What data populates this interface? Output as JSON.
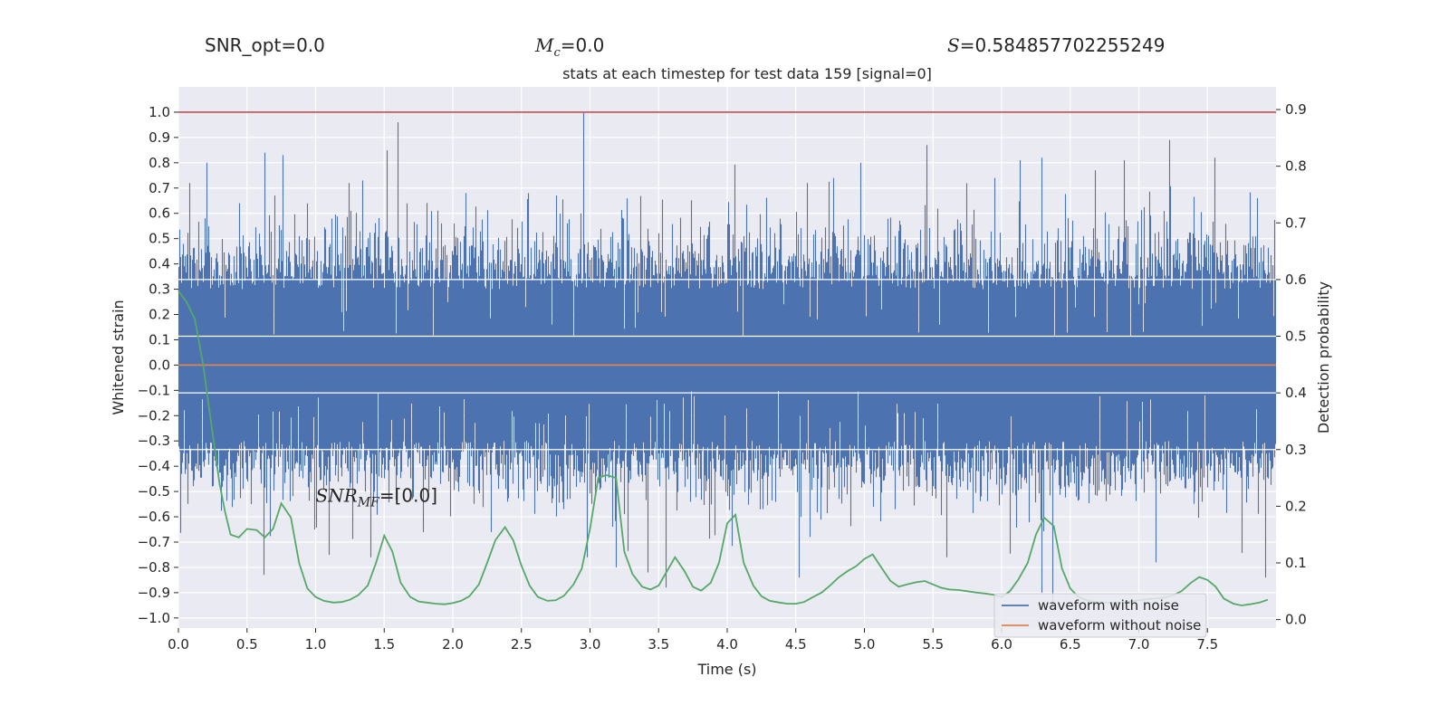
{
  "header": {
    "snr_opt_label": "SNR_opt=0.0",
    "mc_symbol": "M",
    "mc_sub": "c",
    "mc_value": "=0.0",
    "s_symbol": "S",
    "s_value": "=0.584857702255249"
  },
  "chart_data": {
    "type": "line",
    "title": "stats at each timestep for test data 159 [signal=0]",
    "xlabel": "Time (s)",
    "ylabel_left": "Whitened strain",
    "ylabel_right": "Detection probability",
    "xlim": [
      0.0,
      8.0
    ],
    "ylim_left": [
      -1.04,
      1.1
    ],
    "ylim_right": [
      -0.015,
      0.94
    ],
    "xticks": [
      "0.0",
      "0.5",
      "1.0",
      "1.5",
      "2.0",
      "2.5",
      "3.0",
      "3.5",
      "4.0",
      "4.5",
      "5.0",
      "5.5",
      "6.0",
      "6.5",
      "7.0",
      "7.5"
    ],
    "yticks_left": [
      "1.0",
      "0.9",
      "0.8",
      "0.7",
      "0.6",
      "0.5",
      "0.4",
      "0.3",
      "0.2",
      "0.1",
      "0.0",
      "−0.1",
      "−0.2",
      "−0.3",
      "−0.4",
      "−0.5",
      "−0.6",
      "−0.7",
      "−0.8",
      "−0.9",
      "−1.0"
    ],
    "yticks_right": [
      "0.9",
      "0.8",
      "0.7",
      "0.6",
      "0.5",
      "0.4",
      "0.3",
      "0.2",
      "0.1",
      "0.0"
    ],
    "grid": true,
    "legend_position": "bottom-right",
    "annotation": {
      "symbol": "SNR",
      "sub": "MF",
      "value": "=[0.0]",
      "x": 1.0,
      "y": -0.52
    },
    "hlines": [
      {
        "y": 1.0,
        "color": "#c44e52"
      }
    ],
    "noise_series": {
      "name": "waveform with noise",
      "color": "#4c72b0",
      "peaks": [
        {
          "t": 0.08,
          "v": 0.72
        },
        {
          "t": 0.19,
          "v": 0.58
        },
        {
          "t": 0.44,
          "v": 0.64
        },
        {
          "t": 0.63,
          "v": 0.84
        },
        {
          "t": 0.76,
          "v": 0.83
        },
        {
          "t": 1.24,
          "v": 0.72
        },
        {
          "t": 1.34,
          "v": 0.73
        },
        {
          "t": 1.6,
          "v": 0.96
        },
        {
          "t": 2.09,
          "v": 0.68
        },
        {
          "t": 2.55,
          "v": 0.68
        },
        {
          "t": 2.95,
          "v": 1.0
        },
        {
          "t": 4.58,
          "v": 0.72
        },
        {
          "t": 4.77,
          "v": 0.74
        },
        {
          "t": 4.97,
          "v": 0.8
        },
        {
          "t": 5.45,
          "v": 0.87
        },
        {
          "t": 5.95,
          "v": 0.74
        },
        {
          "t": 6.13,
          "v": 0.81
        },
        {
          "t": 6.29,
          "v": 0.82
        },
        {
          "t": 6.68,
          "v": 0.77
        },
        {
          "t": 6.89,
          "v": 0.81
        },
        {
          "t": 7.22,
          "v": 0.89
        },
        {
          "t": 7.55,
          "v": 0.82
        },
        {
          "t": 7.86,
          "v": 0.66
        }
      ],
      "troughs": [
        {
          "t": 0.62,
          "v": -0.83
        },
        {
          "t": 1.4,
          "v": -0.76
        },
        {
          "t": 2.98,
          "v": -0.76
        },
        {
          "t": 3.19,
          "v": -0.8
        },
        {
          "t": 3.55,
          "v": -0.88
        },
        {
          "t": 3.42,
          "v": -0.82
        },
        {
          "t": 4.52,
          "v": -0.84
        },
        {
          "t": 5.6,
          "v": -0.76
        },
        {
          "t": 6.29,
          "v": -0.9
        },
        {
          "t": 6.37,
          "v": -0.96
        },
        {
          "t": 7.12,
          "v": -0.78
        },
        {
          "t": 7.92,
          "v": -0.84
        }
      ]
    },
    "clean_series": {
      "name": "waveform without noise",
      "color": "#dd8452",
      "x": [
        0.0,
        8.0
      ],
      "y": [
        0.0,
        0.0
      ]
    },
    "probability_series": {
      "color": "#55a868",
      "x": [
        0.0,
        0.06,
        0.12,
        0.18,
        0.22,
        0.26,
        0.3,
        0.34,
        0.38,
        0.44,
        0.5,
        0.57,
        0.63,
        0.69,
        0.75,
        0.82,
        0.88,
        0.94,
        1.0,
        1.06,
        1.13,
        1.19,
        1.25,
        1.31,
        1.38,
        1.44,
        1.5,
        1.56,
        1.62,
        1.69,
        1.75,
        1.81,
        1.88,
        1.94,
        2.0,
        2.06,
        2.12,
        2.19,
        2.25,
        2.31,
        2.38,
        2.44,
        2.5,
        2.56,
        2.62,
        2.69,
        2.75,
        2.81,
        2.88,
        2.94,
        3.0,
        3.06,
        3.12,
        3.19,
        3.25,
        3.31,
        3.38,
        3.44,
        3.5,
        3.56,
        3.62,
        3.69,
        3.75,
        3.81,
        3.88,
        3.94,
        4.0,
        4.06,
        4.12,
        4.19,
        4.25,
        4.31,
        4.38,
        4.44,
        4.5,
        4.56,
        4.62,
        4.69,
        4.75,
        4.81,
        4.88,
        4.94,
        5.0,
        5.06,
        5.12,
        5.19,
        5.25,
        5.31,
        5.38,
        5.44,
        5.5,
        5.56,
        5.62,
        5.69,
        5.75,
        5.81,
        5.88,
        5.94,
        6.0,
        6.06,
        6.12,
        6.19,
        6.25,
        6.31,
        6.38,
        6.44,
        6.5,
        6.56,
        6.62,
        6.69,
        6.75,
        6.81,
        6.88,
        6.94,
        7.0,
        7.06,
        7.12,
        7.19,
        7.25,
        7.31,
        7.38,
        7.44,
        7.5,
        7.56,
        7.62,
        7.69,
        7.75,
        7.81,
        7.88,
        7.94
      ],
      "y": [
        0.58,
        0.56,
        0.53,
        0.45,
        0.38,
        0.31,
        0.24,
        0.19,
        0.15,
        0.145,
        0.16,
        0.158,
        0.145,
        0.16,
        0.205,
        0.18,
        0.1,
        0.055,
        0.04,
        0.033,
        0.03,
        0.031,
        0.035,
        0.043,
        0.06,
        0.1,
        0.148,
        0.12,
        0.065,
        0.04,
        0.032,
        0.03,
        0.028,
        0.027,
        0.029,
        0.033,
        0.041,
        0.062,
        0.1,
        0.14,
        0.163,
        0.14,
        0.095,
        0.06,
        0.04,
        0.033,
        0.034,
        0.042,
        0.062,
        0.09,
        0.16,
        0.25,
        0.255,
        0.25,
        0.12,
        0.08,
        0.058,
        0.053,
        0.06,
        0.085,
        0.11,
        0.085,
        0.058,
        0.051,
        0.065,
        0.1,
        0.17,
        0.185,
        0.1,
        0.06,
        0.041,
        0.033,
        0.03,
        0.028,
        0.028,
        0.031,
        0.039,
        0.048,
        0.06,
        0.074,
        0.086,
        0.094,
        0.107,
        0.115,
        0.093,
        0.068,
        0.058,
        0.062,
        0.066,
        0.068,
        0.062,
        0.056,
        0.053,
        0.052,
        0.05,
        0.048,
        0.046,
        0.044,
        0.04,
        0.05,
        0.07,
        0.1,
        0.15,
        0.18,
        0.165,
        0.09,
        0.055,
        0.04,
        0.034,
        0.031,
        0.03,
        0.029,
        0.03,
        0.032,
        0.034,
        0.036,
        0.037,
        0.039,
        0.043,
        0.05,
        0.065,
        0.075,
        0.07,
        0.058,
        0.037,
        0.028,
        0.025,
        0.027,
        0.03,
        0.035
      ]
    }
  }
}
